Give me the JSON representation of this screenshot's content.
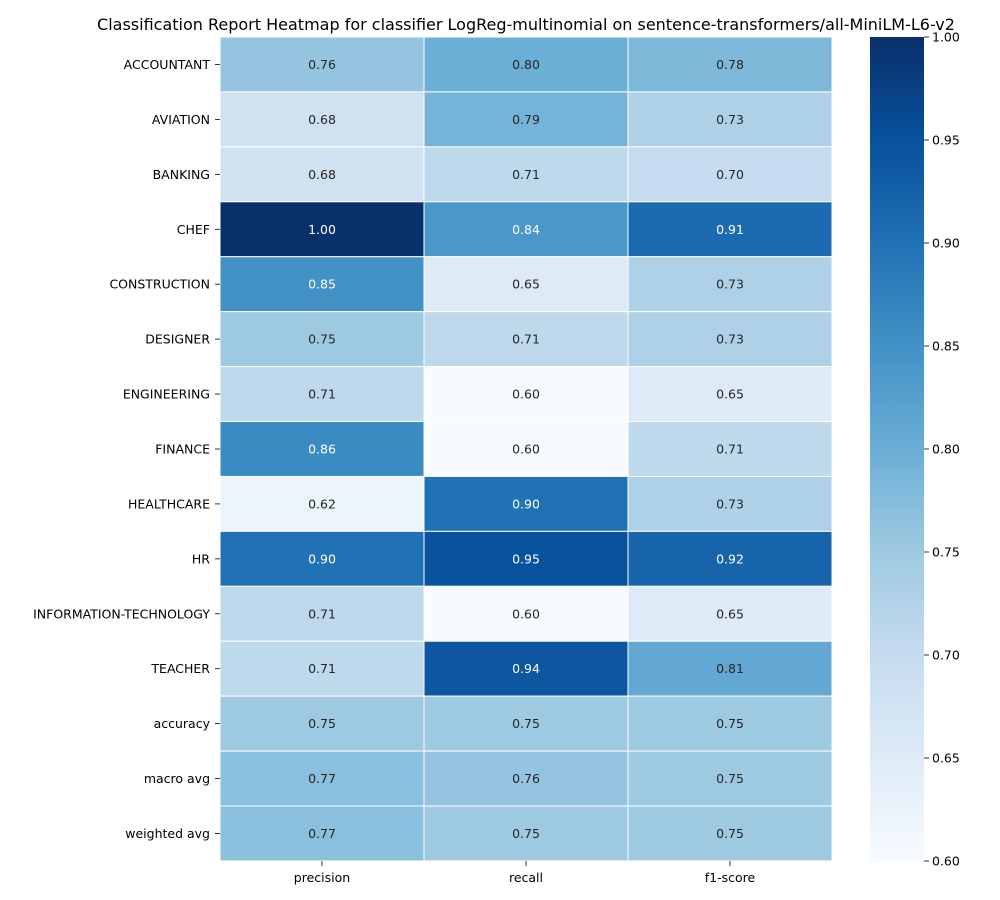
{
  "chart_data": {
    "type": "heatmap",
    "title": "Classification Report Heatmap for classifier LogReg-multinomial on sentence-transformers/all-MiniLM-L6-v2",
    "rows": [
      "ACCOUNTANT",
      "AVIATION",
      "BANKING",
      "CHEF",
      "CONSTRUCTION",
      "DESIGNER",
      "ENGINEERING",
      "FINANCE",
      "HEALTHCARE",
      "HR",
      "INFORMATION-TECHNOLOGY",
      "TEACHER",
      "accuracy",
      "macro avg",
      "weighted avg"
    ],
    "columns": [
      "precision",
      "recall",
      "f1-score"
    ],
    "values": [
      [
        0.76,
        0.8,
        0.78
      ],
      [
        0.68,
        0.79,
        0.73
      ],
      [
        0.68,
        0.71,
        0.7
      ],
      [
        1.0,
        0.84,
        0.91
      ],
      [
        0.85,
        0.65,
        0.73
      ],
      [
        0.75,
        0.71,
        0.73
      ],
      [
        0.71,
        0.6,
        0.65
      ],
      [
        0.86,
        0.6,
        0.71
      ],
      [
        0.62,
        0.9,
        0.73
      ],
      [
        0.9,
        0.95,
        0.92
      ],
      [
        0.71,
        0.6,
        0.65
      ],
      [
        0.71,
        0.94,
        0.81
      ],
      [
        0.75,
        0.75,
        0.75
      ],
      [
        0.77,
        0.76,
        0.75
      ],
      [
        0.77,
        0.75,
        0.75
      ]
    ],
    "value_labels": [
      [
        "0.76",
        "0.80",
        "0.78"
      ],
      [
        "0.68",
        "0.79",
        "0.73"
      ],
      [
        "0.68",
        "0.71",
        "0.70"
      ],
      [
        "1.00",
        "0.84",
        "0.91"
      ],
      [
        "0.85",
        "0.65",
        "0.73"
      ],
      [
        "0.75",
        "0.71",
        "0.73"
      ],
      [
        "0.71",
        "0.60",
        "0.65"
      ],
      [
        "0.86",
        "0.60",
        "0.71"
      ],
      [
        "0.62",
        "0.90",
        "0.73"
      ],
      [
        "0.90",
        "0.95",
        "0.92"
      ],
      [
        "0.71",
        "0.60",
        "0.65"
      ],
      [
        "0.71",
        "0.94",
        "0.81"
      ],
      [
        "0.75",
        "0.75",
        "0.75"
      ],
      [
        "0.77",
        "0.76",
        "0.75"
      ],
      [
        "0.77",
        "0.75",
        "0.75"
      ]
    ],
    "colorscale": "Blues",
    "color_range": [
      0.6,
      1.0
    ],
    "colorbar_ticks": [
      "0.60",
      "0.65",
      "0.70",
      "0.75",
      "0.80",
      "0.85",
      "0.90",
      "0.95",
      "1.00"
    ],
    "colorbar_placement": "right"
  }
}
